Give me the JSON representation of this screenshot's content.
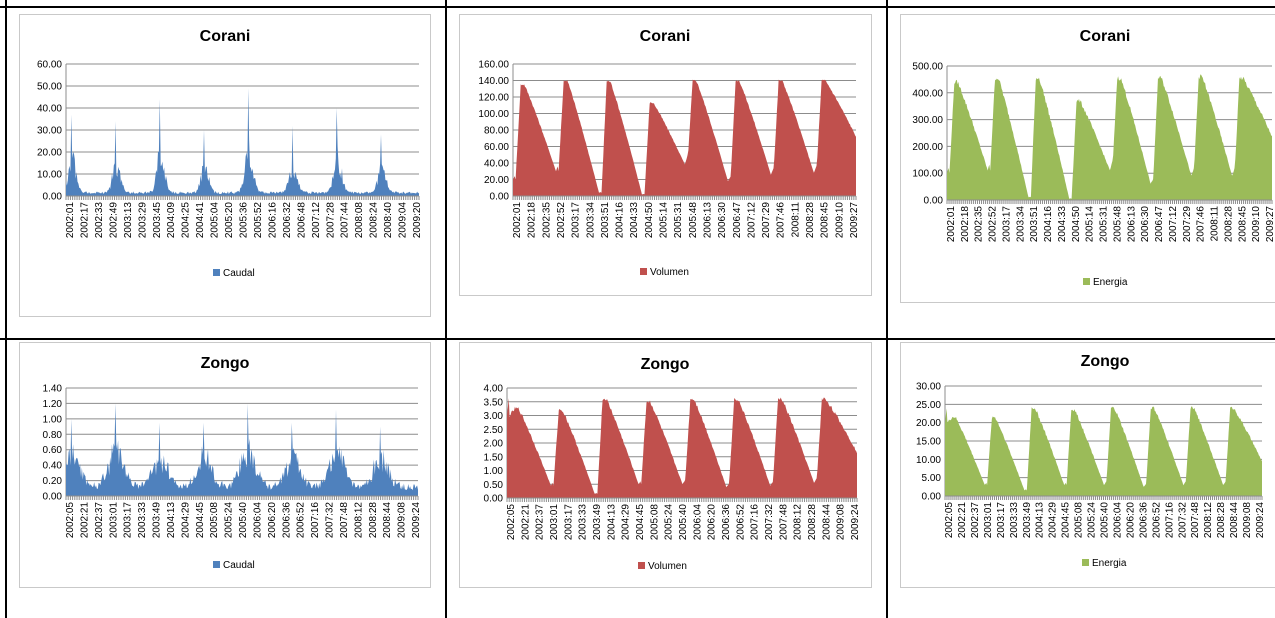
{
  "chart_data": [
    {
      "type": "area",
      "title": "Corani",
      "series": [
        {
          "name": "Caudal",
          "color": "#4f81bd"
        }
      ],
      "ylim": [
        0,
        60
      ],
      "yticks": [
        "0.00",
        "10.00",
        "20.00",
        "30.00",
        "40.00",
        "50.00",
        "60.00"
      ],
      "xticks": [
        "2002:01",
        "2002:17",
        "2002:33",
        "2002:49",
        "2003:13",
        "2003:29",
        "2003:45",
        "2004:09",
        "2004:25",
        "2004:41",
        "2005:04",
        "2005:20",
        "2005:36",
        "2005:52",
        "2006:16",
        "2006:32",
        "2006:48",
        "2007:12",
        "2007:28",
        "2007:44",
        "2008:08",
        "2008:24",
        "2008:40",
        "2009:04",
        "2009:20"
      ],
      "peaks": [
        37,
        34,
        44,
        30,
        49,
        32,
        40,
        28
      ],
      "base": 1.5,
      "width": 6,
      "shape": "spiky",
      "noise": 0.45
    },
    {
      "type": "area",
      "title": "Corani",
      "series": [
        {
          "name": "Volumen",
          "color": "#c0504d"
        }
      ],
      "ylim": [
        0,
        160
      ],
      "yticks": [
        "0.00",
        "20.00",
        "40.00",
        "60.00",
        "80.00",
        "100.00",
        "120.00",
        "140.00",
        "160.00"
      ],
      "xticks": [
        "2002:01",
        "2002:18",
        "2002:35",
        "2002:52",
        "2003:17",
        "2003:34",
        "2003:51",
        "2004:16",
        "2004:33",
        "2004:50",
        "2005:14",
        "2005:31",
        "2005:48",
        "2006:13",
        "2006:30",
        "2006:47",
        "2007:12",
        "2007:29",
        "2007:46",
        "2008:11",
        "2008:28",
        "2008:45",
        "2009:10",
        "2009:27"
      ],
      "peaks": [
        135,
        140,
        139,
        113,
        140,
        140,
        140,
        140
      ],
      "mins": [
        30,
        4,
        2,
        38,
        18,
        26,
        28,
        70
      ],
      "start": 20,
      "shape": "wave",
      "noise": 0.02
    },
    {
      "type": "area",
      "title": "Corani",
      "series": [
        {
          "name": "Energia",
          "color": "#9bbb59"
        }
      ],
      "ylim": [
        0,
        500
      ],
      "yticks": [
        "0.00",
        "100.00",
        "200.00",
        "300.00",
        "400.00",
        "500.00"
      ],
      "xticks": [
        "2002:01",
        "2002:18",
        "2002:35",
        "2002:52",
        "2003:17",
        "2003:34",
        "2003:51",
        "2004:16",
        "2004:33",
        "2004:50",
        "2005:14",
        "2005:31",
        "2005:48",
        "2006:13",
        "2006:30",
        "2006:47",
        "2007:12",
        "2007:29",
        "2007:46",
        "2008:11",
        "2008:28",
        "2008:45",
        "2009:10",
        "2009:27"
      ],
      "peaks": [
        440,
        455,
        455,
        370,
        455,
        455,
        460,
        455
      ],
      "mins": [
        110,
        10,
        5,
        110,
        60,
        90,
        90,
        230
      ],
      "start": 100,
      "shape": "wave",
      "noise": 0.04
    },
    {
      "type": "area",
      "title": "Zongo",
      "series": [
        {
          "name": "Caudal",
          "color": "#4f81bd"
        }
      ],
      "ylim": [
        0,
        1.4
      ],
      "yticks": [
        "0.00",
        "0.20",
        "0.40",
        "0.60",
        "0.80",
        "1.00",
        "1.20",
        "1.40"
      ],
      "xticks": [
        "2002:05",
        "2002:21",
        "2002:37",
        "2003:01",
        "2003:17",
        "2003:33",
        "2003:49",
        "2004:13",
        "2004:29",
        "2004:45",
        "2005:08",
        "2005:24",
        "2005:40",
        "2006:04",
        "2006:20",
        "2006:36",
        "2006:52",
        "2007:16",
        "2007:32",
        "2007:48",
        "2008:12",
        "2008:28",
        "2008:44",
        "2009:08",
        "2009:24"
      ],
      "peaks": [
        1.0,
        1.2,
        0.95,
        0.95,
        1.2,
        0.95,
        1.12,
        0.9
      ],
      "base": 0.12,
      "width": 12,
      "shape": "spiky",
      "noise": 0.35
    },
    {
      "type": "area",
      "title": "Zongo",
      "series": [
        {
          "name": "Volumen",
          "color": "#c0504d"
        }
      ],
      "ylim": [
        0,
        4
      ],
      "yticks": [
        "0.00",
        "0.50",
        "1.00",
        "1.50",
        "2.00",
        "2.50",
        "3.00",
        "3.50",
        "4.00"
      ],
      "xticks": [
        "2002:05",
        "2002:21",
        "2002:37",
        "2003:01",
        "2003:17",
        "2003:33",
        "2003:49",
        "2004:13",
        "2004:29",
        "2004:45",
        "2005:08",
        "2005:24",
        "2005:40",
        "2006:04",
        "2006:20",
        "2006:36",
        "2006:52",
        "2007:16",
        "2007:32",
        "2007:48",
        "2008:12",
        "2008:28",
        "2008:44",
        "2009:08",
        "2009:24"
      ],
      "peaks": [
        3.25,
        3.2,
        3.6,
        3.5,
        3.6,
        3.6,
        3.6,
        3.6
      ],
      "mins": [
        0.45,
        0.15,
        0.5,
        0.5,
        0.4,
        0.45,
        0.55,
        1.6
      ],
      "start": 3.0,
      "shape": "wave",
      "noise": 0.04
    },
    {
      "type": "area",
      "title": "Zongo",
      "series": [
        {
          "name": "Energia",
          "color": "#9bbb59"
        }
      ],
      "ylim": [
        0,
        30
      ],
      "yticks": [
        "0.00",
        "5.00",
        "10.00",
        "15.00",
        "20.00",
        "25.00",
        "30.00"
      ],
      "xticks": [
        "2002:05",
        "2002:21",
        "2002:37",
        "2003:01",
        "2003:17",
        "2003:33",
        "2003:49",
        "2004:13",
        "2004:29",
        "2004:45",
        "2005:08",
        "2005:24",
        "2005:40",
        "2006:04",
        "2006:20",
        "2006:36",
        "2006:52",
        "2007:16",
        "2007:32",
        "2007:48",
        "2008:12",
        "2008:28",
        "2008:44",
        "2009:08",
        "2009:24"
      ],
      "peaks": [
        21.5,
        21.5,
        24,
        23.5,
        24,
        24,
        24,
        24
      ],
      "mins": [
        3,
        1.5,
        3,
        3,
        2.5,
        3,
        3,
        9
      ],
      "start": 20,
      "shape": "wave",
      "noise": 0.04
    }
  ]
}
